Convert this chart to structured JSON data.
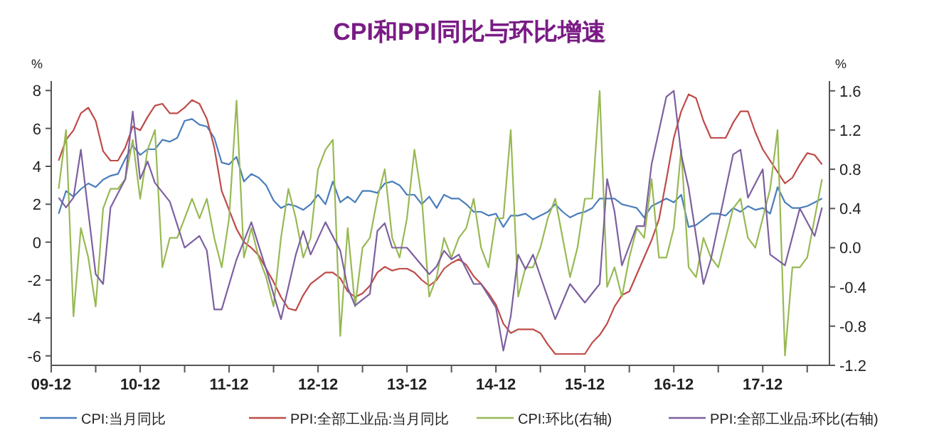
{
  "chart_data": {
    "type": "line",
    "title": "CPI和PPI同比与环比增速",
    "annotations": [
      "%",
      "%"
    ],
    "grid": false,
    "legend": "bottom",
    "line_style": "solid",
    "x": [
      "2010-01",
      "2010-02",
      "2010-03",
      "2010-04",
      "2010-05",
      "2010-06",
      "2010-07",
      "2010-08",
      "2010-09",
      "2010-10",
      "2010-11",
      "2010-12",
      "2011-01",
      "2011-02",
      "2011-03",
      "2011-04",
      "2011-05",
      "2011-06",
      "2011-07",
      "2011-08",
      "2011-09",
      "2011-10",
      "2011-11",
      "2011-12",
      "2012-01",
      "2012-02",
      "2012-03",
      "2012-04",
      "2012-05",
      "2012-06",
      "2012-07",
      "2012-08",
      "2012-09",
      "2012-10",
      "2012-11",
      "2012-12",
      "2013-01",
      "2013-02",
      "2013-03",
      "2013-04",
      "2013-05",
      "2013-06",
      "2013-07",
      "2013-08",
      "2013-09",
      "2013-10",
      "2013-11",
      "2013-12",
      "2014-01",
      "2014-02",
      "2014-03",
      "2014-04",
      "2014-05",
      "2014-06",
      "2014-07",
      "2014-08",
      "2014-09",
      "2014-10",
      "2014-11",
      "2014-12",
      "2015-01",
      "2015-02",
      "2015-03",
      "2015-04",
      "2015-05",
      "2015-06",
      "2015-07",
      "2015-08",
      "2015-09",
      "2015-10",
      "2015-11",
      "2015-12",
      "2016-01",
      "2016-02",
      "2016-03",
      "2016-04",
      "2016-05",
      "2016-06",
      "2016-07",
      "2016-08",
      "2016-09",
      "2016-10",
      "2016-11",
      "2016-12",
      "2017-01",
      "2017-02",
      "2017-03",
      "2017-04",
      "2017-05",
      "2017-06",
      "2017-07",
      "2017-08",
      "2017-09",
      "2017-10",
      "2017-11",
      "2017-12",
      "2018-01",
      "2018-02",
      "2018-03",
      "2018-04",
      "2018-05",
      "2018-06",
      "2018-07",
      "2018-08"
    ],
    "xlim": [
      "2009-12",
      "2018-09"
    ],
    "xticks": [
      {
        "value": "2009-12",
        "label": "09-12"
      },
      {
        "value": "2010-06",
        "label": null
      },
      {
        "value": "2010-12",
        "label": "10-12"
      },
      {
        "value": "2011-06",
        "label": null
      },
      {
        "value": "2011-12",
        "label": "11-12"
      },
      {
        "value": "2012-06",
        "label": null
      },
      {
        "value": "2012-12",
        "label": "12-12"
      },
      {
        "value": "2013-06",
        "label": null
      },
      {
        "value": "2013-12",
        "label": "13-12"
      },
      {
        "value": "2014-06",
        "label": null
      },
      {
        "value": "2014-12",
        "label": "14-12"
      },
      {
        "value": "2015-06",
        "label": null
      },
      {
        "value": "2015-12",
        "label": "15-12"
      },
      {
        "value": "2016-06",
        "label": null
      },
      {
        "value": "2016-12",
        "label": "16-12"
      },
      {
        "value": "2017-06",
        "label": null
      },
      {
        "value": "2017-12",
        "label": "17-12"
      },
      {
        "value": "2018-06",
        "label": null
      }
    ],
    "ylim": [
      -6.5,
      8.5
    ],
    "yticks": [
      -6,
      -4,
      -2,
      0,
      2,
      4,
      6,
      8
    ],
    "y2lim": [
      -1.2,
      1.7
    ],
    "y2ticks": [
      {
        "value": -1.2,
        "label": "-1.2"
      },
      {
        "value": -0.8,
        "label": "-0.8"
      },
      {
        "value": -0.4,
        "label": "-0.4"
      },
      {
        "value": 0,
        "label": "0.0"
      },
      {
        "value": 0.4,
        "label": "0.4"
      },
      {
        "value": 0.8,
        "label": "0.8"
      },
      {
        "value": 1.2,
        "label": "1.2"
      },
      {
        "value": 1.6,
        "label": "1.6"
      }
    ],
    "series": [
      {
        "name": "CPI:当月同比",
        "color": "#4a7ebb",
        "values": [
          1.5,
          2.7,
          2.4,
          2.8,
          3.1,
          2.9,
          3.3,
          3.5,
          3.6,
          4.4,
          5.1,
          4.6,
          4.9,
          4.9,
          5.4,
          5.3,
          5.5,
          6.4,
          6.5,
          6.2,
          6.1,
          5.5,
          4.2,
          4.1,
          4.5,
          3.2,
          3.6,
          3.4,
          3.0,
          2.2,
          1.8,
          2.0,
          1.9,
          1.7,
          2.0,
          2.5,
          2.0,
          3.2,
          2.1,
          2.4,
          2.1,
          2.7,
          2.7,
          2.6,
          3.1,
          3.2,
          3.0,
          2.5,
          2.5,
          2.0,
          2.4,
          1.8,
          2.5,
          2.3,
          2.3,
          2.0,
          1.6,
          1.6,
          1.4,
          1.5,
          0.8,
          1.4,
          1.4,
          1.5,
          1.2,
          1.4,
          1.6,
          2.0,
          1.6,
          1.3,
          1.5,
          1.6,
          1.8,
          2.3,
          2.3,
          2.3,
          2.0,
          1.9,
          1.8,
          1.3,
          1.9,
          2.1,
          2.3,
          2.1,
          2.5,
          0.8,
          0.9,
          1.2,
          1.5,
          1.5,
          1.4,
          1.8,
          1.6,
          1.9,
          1.7,
          1.8,
          1.5,
          2.9,
          2.1,
          1.8,
          1.8,
          1.9,
          2.1,
          2.3
        ]
      },
      {
        "name": "PPI:全部工业品:当月同比",
        "color": "#be4b48",
        "values": [
          4.3,
          5.4,
          5.9,
          6.8,
          7.1,
          6.4,
          4.8,
          4.3,
          4.3,
          5.0,
          6.1,
          5.9,
          6.6,
          7.2,
          7.3,
          6.8,
          6.8,
          7.1,
          7.5,
          7.3,
          6.5,
          5.0,
          2.7,
          1.7,
          0.7,
          0.0,
          -0.3,
          -0.7,
          -1.4,
          -2.1,
          -2.9,
          -3.5,
          -3.6,
          -2.8,
          -2.2,
          -1.9,
          -1.6,
          -1.6,
          -1.9,
          -2.6,
          -2.9,
          -2.7,
          -2.3,
          -1.6,
          -1.3,
          -1.5,
          -1.4,
          -1.4,
          -1.6,
          -2.0,
          -2.3,
          -2.0,
          -1.4,
          -1.1,
          -0.9,
          -1.2,
          -1.8,
          -2.2,
          -2.7,
          -3.3,
          -4.3,
          -4.8,
          -4.6,
          -4.6,
          -4.6,
          -4.8,
          -5.4,
          -5.9,
          -5.9,
          -5.9,
          -5.9,
          -5.9,
          -5.3,
          -4.9,
          -4.3,
          -3.4,
          -2.8,
          -2.6,
          -1.7,
          -0.8,
          0.1,
          1.2,
          3.3,
          5.5,
          6.9,
          7.8,
          7.6,
          6.4,
          5.5,
          5.5,
          5.5,
          6.3,
          6.9,
          6.9,
          5.8,
          4.9,
          4.3,
          3.7,
          3.1,
          3.4,
          4.1,
          4.7,
          4.6,
          4.1
        ]
      },
      {
        "name": "CPI:环比(右轴)",
        "color": "#98b954",
        "axis": "y2",
        "values": [
          0.6,
          1.2,
          -0.7,
          0.2,
          -0.1,
          -0.6,
          0.4,
          0.6,
          0.6,
          0.7,
          1.1,
          0.5,
          1.0,
          1.2,
          -0.2,
          0.1,
          0.1,
          0.3,
          0.5,
          0.3,
          0.5,
          0.1,
          -0.2,
          0.3,
          1.5,
          -0.1,
          0.2,
          -0.1,
          -0.3,
          -0.6,
          0.1,
          0.6,
          0.3,
          -0.1,
          0.1,
          0.8,
          1.0,
          1.1,
          -0.9,
          0.2,
          -0.6,
          0.0,
          0.1,
          0.5,
          0.8,
          0.1,
          -0.1,
          0.3,
          1.0,
          0.5,
          -0.5,
          -0.3,
          0.1,
          -0.1,
          0.1,
          0.2,
          0.5,
          0.0,
          -0.2,
          0.3,
          0.3,
          1.2,
          -0.5,
          -0.2,
          -0.2,
          0.0,
          0.3,
          0.5,
          0.1,
          -0.3,
          0.0,
          0.5,
          0.5,
          1.6,
          -0.4,
          -0.2,
          -0.5,
          -0.1,
          0.2,
          0.1,
          0.7,
          -0.1,
          -0.1,
          0.2,
          1.0,
          -0.2,
          -0.3,
          0.1,
          -0.1,
          -0.2,
          0.1,
          0.4,
          0.5,
          0.1,
          0.0,
          0.3,
          0.6,
          1.2,
          -1.1,
          -0.2,
          -0.2,
          -0.1,
          0.3,
          0.7
        ]
      },
      {
        "name": "PPI:全部工业品:环比(右轴)",
        "color": "#7d60a0",
        "axis": "y2",
        "x": [
          "2010-01",
          "2010-02",
          "2010-03",
          "2010-04",
          "2010-06",
          "2010-07",
          "2010-08",
          "2010-10",
          "2010-11",
          "2010-12",
          "2011-01",
          "2011-02",
          "2011-04",
          "2011-06",
          "2011-08",
          "2011-09",
          "2011-10",
          "2011-11",
          "2012-01",
          "2012-03",
          "2012-05",
          "2012-07",
          "2012-09",
          "2012-10",
          "2012-11",
          "2013-01",
          "2013-03",
          "2013-04",
          "2013-05",
          "2013-07",
          "2013-08",
          "2013-09",
          "2013-10",
          "2013-12",
          "2014-03",
          "2014-04",
          "2014-05",
          "2014-06",
          "2014-07",
          "2014-09",
          "2014-10",
          "2014-12",
          "2015-01",
          "2015-02",
          "2015-03",
          "2015-04",
          "2015-05",
          "2015-08",
          "2015-10",
          "2015-12",
          "2016-02",
          "2016-03",
          "2016-04",
          "2016-05",
          "2016-07",
          "2016-08",
          "2016-09",
          "2016-11",
          "2016-12",
          "2017-01",
          "2017-02",
          "2017-04",
          "2017-05",
          "2017-08",
          "2017-09",
          "2017-10",
          "2017-12",
          "2018-01",
          "2018-03",
          "2018-05",
          "2018-07",
          "2018-08"
        ],
        "values": [
          0.51,
          0.41,
          0.51,
          1.0,
          -0.27,
          -0.37,
          0.41,
          0.7,
          1.39,
          0.7,
          0.88,
          0.66,
          0.47,
          0.0,
          0.12,
          -0.03,
          -0.63,
          -0.63,
          -0.12,
          0.26,
          -0.22,
          -0.73,
          -0.07,
          0.17,
          -0.07,
          0.26,
          -0.03,
          -0.41,
          -0.59,
          -0.47,
          0.17,
          0.25,
          0.0,
          0.0,
          -0.27,
          -0.19,
          -0.03,
          -0.12,
          -0.07,
          -0.37,
          -0.37,
          -0.61,
          -1.05,
          -0.7,
          -0.07,
          -0.22,
          -0.07,
          -0.73,
          -0.37,
          -0.56,
          -0.37,
          0.7,
          0.37,
          -0.18,
          0.22,
          0.22,
          0.85,
          1.54,
          1.6,
          0.95,
          0.61,
          -0.37,
          -0.12,
          0.95,
          1.0,
          0.51,
          0.8,
          -0.07,
          -0.18,
          0.4,
          0.12,
          0.41
        ]
      }
    ]
  }
}
